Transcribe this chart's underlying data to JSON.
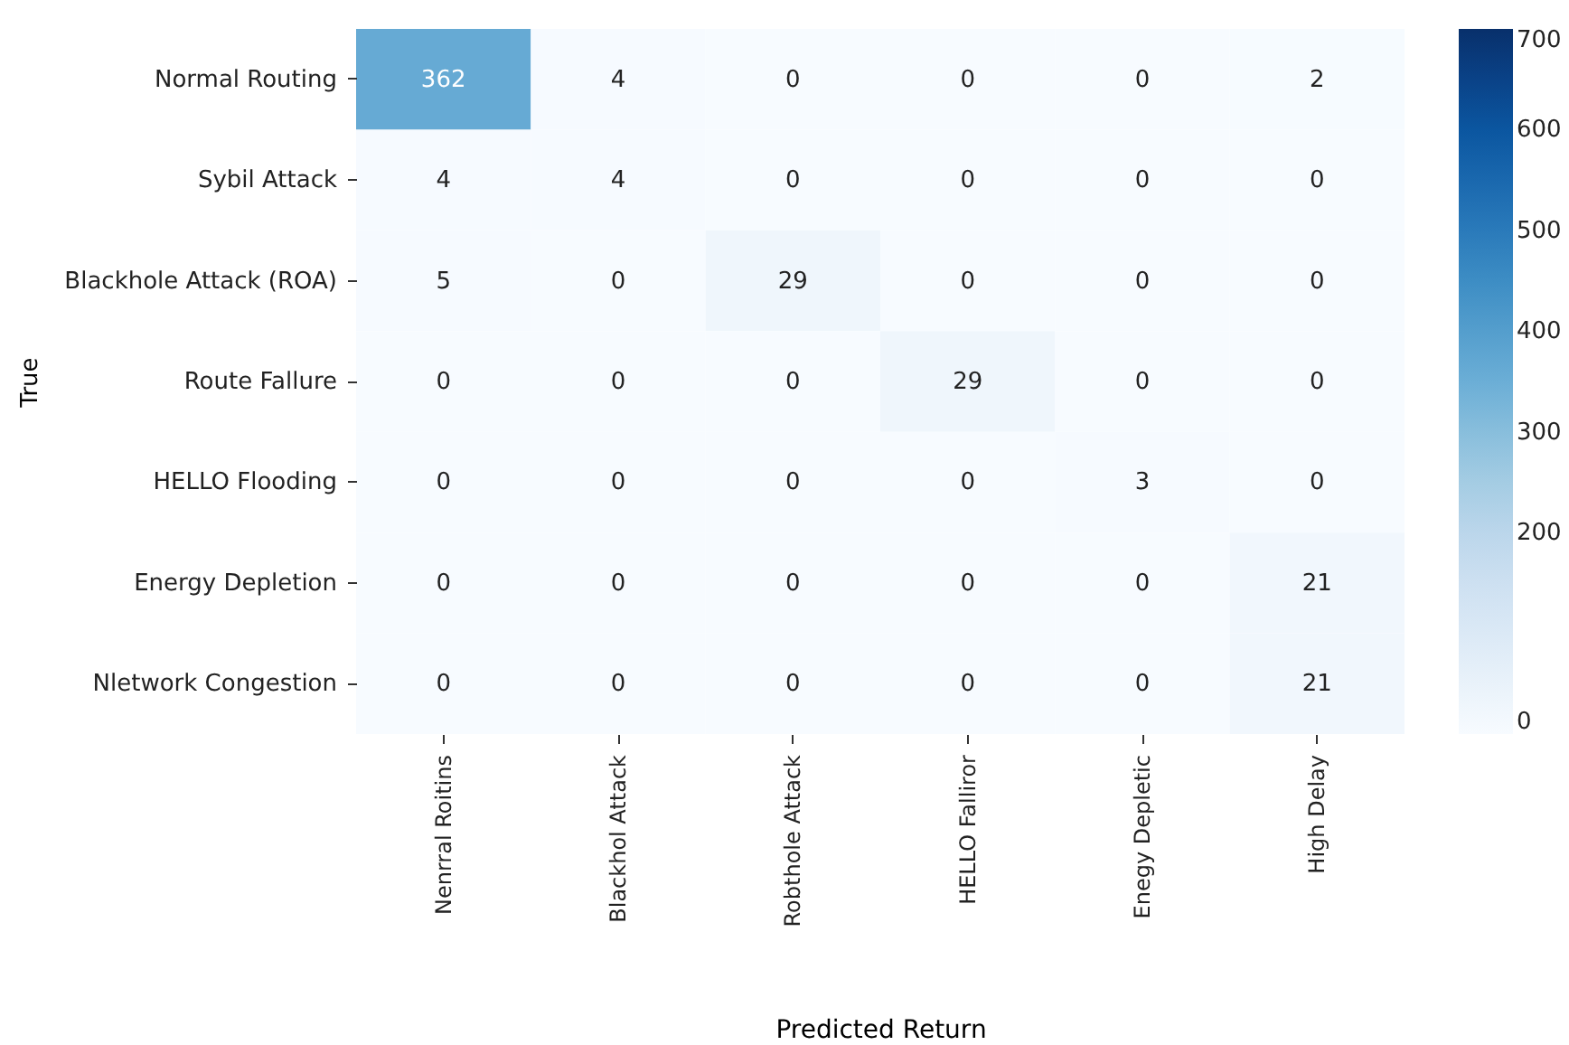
{
  "chart_data": {
    "type": "heatmap",
    "xlabel": "Predicted Return",
    "ylabel": "True",
    "categories": [
      "Nenrral Roitins",
      "Blackhol Attack",
      "Robthole Attack",
      "HELLO Falliror",
      "Enegy Depletic",
      "High Delay"
    ],
    "y_categories": [
      "Normal Routing",
      "Sybil Attack",
      "Blackhole Attack (ROA)",
      "Route Fallure",
      "HELLO Flooding",
      "Energy Depletion",
      "Nletwork Congestion"
    ],
    "cells": [
      [
        362,
        4,
        0,
        0,
        0,
        2
      ],
      [
        4,
        4,
        0,
        0,
        0,
        0
      ],
      [
        5,
        0,
        29,
        0,
        0,
        0
      ],
      [
        0,
        0,
        0,
        29,
        0,
        0
      ],
      [
        0,
        0,
        0,
        0,
        3,
        0
      ],
      [
        0,
        0,
        0,
        0,
        0,
        21
      ],
      [
        0,
        0,
        0,
        0,
        0,
        21
      ]
    ],
    "data_labels": true,
    "clim": [
      0,
      700
    ],
    "cticks": [
      0,
      200,
      300,
      400,
      500,
      600,
      700
    ]
  }
}
